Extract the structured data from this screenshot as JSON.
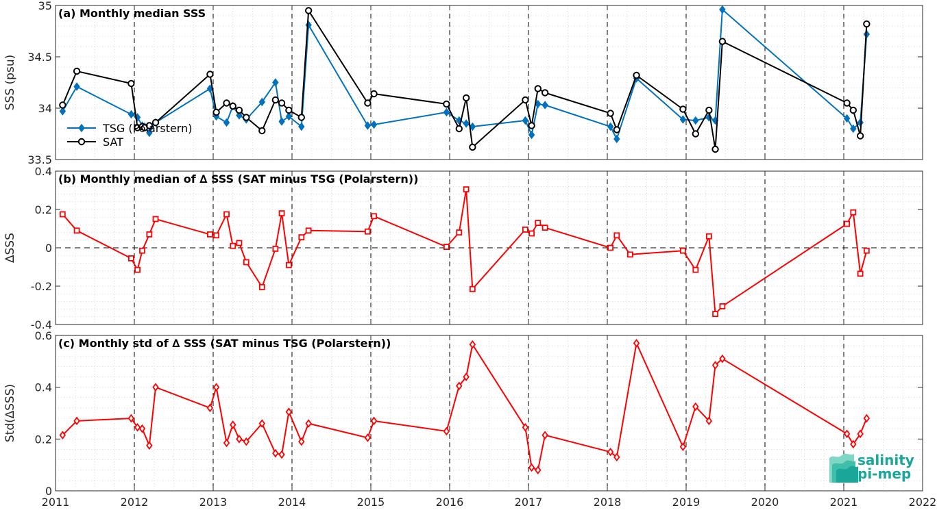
{
  "logo": {
    "line1": "salinity",
    "line2": "pi-mep",
    "color": "#1aa79a"
  },
  "colors": {
    "tsg": "#0072BD",
    "sat": "#000000",
    "delta": "#FF0000",
    "vline": "#000000",
    "grid": "#d9d9d9"
  },
  "chart_data": [
    {
      "type": "line",
      "title": "(a) Monthly median SSS",
      "xlabel": "",
      "ylabel": "SSS (psu)",
      "xlim": [
        2011,
        2022
      ],
      "ylim": [
        33.5,
        35
      ],
      "xticks": [
        "2011",
        "2012",
        "2013",
        "2014",
        "2015",
        "2016",
        "2017",
        "2018",
        "2019",
        "2020",
        "2021",
        "2022"
      ],
      "yticks": [
        "33.5",
        "34",
        "34.5",
        "35"
      ],
      "legend_position": "left",
      "series": [
        {
          "name": "TSG (Polarstern)",
          "marker": "diamond",
          "color": "#0072BD",
          "x": [
            2011.09,
            2011.27,
            2011.96,
            2012.04,
            2012.1,
            2012.13,
            2012.19,
            2012.27,
            2012.96,
            2013.04,
            2013.17,
            2013.25,
            2013.33,
            2013.42,
            2013.62,
            2013.79,
            2013.87,
            2013.96,
            2014.12,
            2014.21,
            2014.96,
            2015.04,
            2015.96,
            2016.12,
            2016.21,
            2016.29,
            2016.96,
            2017.04,
            2017.12,
            2017.21,
            2018.04,
            2018.12,
            2018.37,
            2018.96,
            2019.12,
            2019.29,
            2019.37,
            2019.46,
            2021.04,
            2021.12,
            2021.21,
            2021.29
          ],
          "y": [
            33.97,
            34.21,
            33.94,
            33.91,
            33.83,
            33.82,
            33.76,
            33.86,
            34.19,
            33.92,
            33.86,
            34.02,
            33.93,
            33.89,
            34.06,
            34.25,
            33.87,
            33.92,
            33.82,
            34.81,
            33.83,
            33.84,
            33.96,
            33.88,
            33.85,
            33.82,
            33.88,
            33.74,
            34.04,
            34.03,
            33.82,
            33.7,
            34.29,
            33.89,
            33.88,
            33.91,
            33.88,
            34.96,
            33.9,
            33.8,
            33.86,
            34.72
          ]
        },
        {
          "name": "SAT",
          "marker": "circle",
          "color": "#000000",
          "x": [
            2011.09,
            2011.27,
            2011.96,
            2012.04,
            2012.1,
            2012.13,
            2012.19,
            2012.27,
            2012.96,
            2013.04,
            2013.17,
            2013.25,
            2013.33,
            2013.42,
            2013.62,
            2013.79,
            2013.87,
            2013.96,
            2014.12,
            2014.21,
            2014.96,
            2015.04,
            2015.96,
            2016.12,
            2016.21,
            2016.29,
            2016.96,
            2017.04,
            2017.12,
            2017.21,
            2018.04,
            2018.12,
            2018.37,
            2018.96,
            2019.12,
            2019.29,
            2019.37,
            2019.46,
            2021.04,
            2021.12,
            2021.21,
            2021.29
          ],
          "y": [
            34.03,
            34.36,
            34.24,
            33.81,
            33.82,
            33.81,
            33.83,
            33.86,
            34.33,
            33.96,
            34.05,
            34.02,
            33.98,
            33.91,
            33.78,
            34.08,
            34.05,
            33.98,
            33.91,
            34.95,
            34.05,
            34.14,
            34.04,
            33.8,
            34.1,
            33.62,
            34.08,
            33.83,
            34.19,
            34.15,
            33.95,
            33.79,
            34.32,
            33.99,
            33.75,
            33.98,
            33.6,
            34.65,
            34.05,
            33.98,
            33.73,
            34.82
          ]
        }
      ]
    },
    {
      "type": "line",
      "title": "(b) Monthly median of ∆ SSS (SAT minus TSG (Polarstern))",
      "xlabel": "",
      "ylabel": "∆SSS",
      "xlim": [
        2011,
        2022
      ],
      "ylim": [
        -0.4,
        0.4
      ],
      "xticks": [
        "2011",
        "2012",
        "2013",
        "2014",
        "2015",
        "2016",
        "2017",
        "2018",
        "2019",
        "2020",
        "2021",
        "2022"
      ],
      "yticks": [
        "-0.4",
        "-0.2",
        "0",
        "0.2",
        "0.4"
      ],
      "zero_line": true,
      "series": [
        {
          "marker": "square",
          "color": "#FF0000",
          "x": [
            2011.09,
            2011.27,
            2011.96,
            2012.04,
            2012.1,
            2012.19,
            2012.27,
            2012.96,
            2013.04,
            2013.17,
            2013.25,
            2013.33,
            2013.42,
            2013.62,
            2013.79,
            2013.87,
            2013.96,
            2014.12,
            2014.21,
            2014.96,
            2015.04,
            2015.96,
            2016.12,
            2016.21,
            2016.29,
            2016.96,
            2017.04,
            2017.12,
            2017.21,
            2018.04,
            2018.12,
            2018.29,
            2018.96,
            2019.12,
            2019.29,
            2019.37,
            2019.46,
            2021.04,
            2021.12,
            2021.21,
            2021.29
          ],
          "y": [
            0.175,
            0.09,
            -0.055,
            -0.115,
            -0.015,
            0.07,
            0.15,
            0.07,
            0.065,
            0.175,
            0.01,
            0.025,
            -0.075,
            -0.205,
            -0.005,
            0.18,
            -0.09,
            0.055,
            0.09,
            0.085,
            0.165,
            0.005,
            0.08,
            0.305,
            -0.215,
            0.095,
            0.075,
            0.13,
            0.105,
            0.0,
            0.065,
            -0.035,
            -0.015,
            -0.115,
            0.06,
            -0.345,
            -0.305,
            0.125,
            0.185,
            -0.135,
            -0.015
          ]
        }
      ]
    },
    {
      "type": "line",
      "title": "(c) Monthly std of ∆ SSS (SAT minus TSG (Polarstern))",
      "xlabel": "",
      "ylabel": "Std(∆SSS)",
      "xlim": [
        2011,
        2022
      ],
      "ylim": [
        0,
        0.6
      ],
      "xticks": [
        "2011",
        "2012",
        "2013",
        "2014",
        "2015",
        "2016",
        "2017",
        "2018",
        "2019",
        "2020",
        "2021",
        "2022"
      ],
      "yticks": [
        "0",
        "0.2",
        "0.4",
        "0.6"
      ],
      "series": [
        {
          "marker": "diamond",
          "color": "#FF0000",
          "x": [
            2011.09,
            2011.27,
            2011.96,
            2012.04,
            2012.1,
            2012.19,
            2012.27,
            2012.96,
            2013.04,
            2013.17,
            2013.25,
            2013.33,
            2013.42,
            2013.62,
            2013.79,
            2013.87,
            2013.96,
            2014.12,
            2014.21,
            2014.96,
            2015.04,
            2015.96,
            2016.12,
            2016.21,
            2016.29,
            2016.96,
            2017.04,
            2017.12,
            2017.21,
            2018.04,
            2018.12,
            2018.37,
            2018.96,
            2019.12,
            2019.29,
            2019.37,
            2019.46,
            2021.04,
            2021.12,
            2021.21,
            2021.29
          ],
          "y": [
            0.215,
            0.27,
            0.28,
            0.245,
            0.24,
            0.175,
            0.4,
            0.32,
            0.4,
            0.185,
            0.255,
            0.2,
            0.19,
            0.26,
            0.145,
            0.14,
            0.305,
            0.19,
            0.26,
            0.205,
            0.27,
            0.23,
            0.405,
            0.44,
            0.565,
            0.245,
            0.09,
            0.08,
            0.215,
            0.15,
            0.13,
            0.57,
            0.17,
            0.325,
            0.27,
            0.485,
            0.51,
            0.22,
            0.18,
            0.22,
            0.28
          ]
        }
      ]
    }
  ]
}
